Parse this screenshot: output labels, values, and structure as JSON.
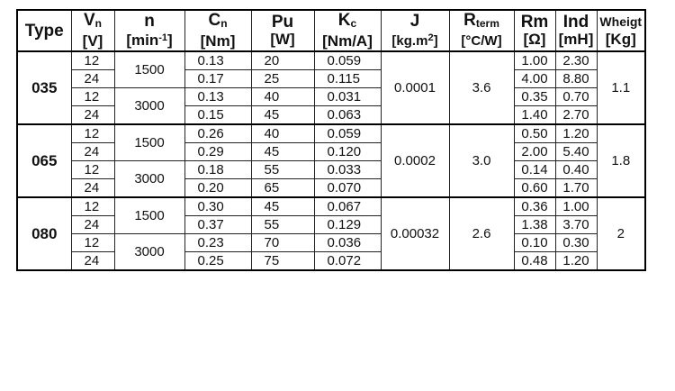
{
  "header": {
    "type": "Type",
    "vn_sym": "V",
    "vn_sub": "n",
    "vn_unit": "[V]",
    "n_sym": "n",
    "n_unit_pre": "[min",
    "n_unit_sup": "-1",
    "n_unit_post": "]",
    "cn_sym": "C",
    "cn_sub": "n",
    "cn_unit": "[Nm]",
    "pu_sym": "Pu",
    "pu_unit": "[W]",
    "kc_sym": "K",
    "kc_sub": "c",
    "kc_unit": "[Nm/A]",
    "j_sym": "J",
    "j_unit_pre": "[kg.m",
    "j_unit_sup": "2",
    "j_unit_post": "]",
    "rt_sym": "R",
    "rt_sub": "term",
    "rt_unit": "[°C/W]",
    "rm_sym": "Rm",
    "rm_unit": "[Ω]",
    "ind_sym": "Ind",
    "ind_unit": "[mH]",
    "w_sym": "Wheigt",
    "w_unit": "[Kg]"
  },
  "groups": [
    {
      "type": "035",
      "j": "0.0001",
      "rterm": "3.6",
      "weight": "1.1",
      "speeds": [
        {
          "n": "1500",
          "rows": [
            {
              "vn": "12",
              "cn": "0.13",
              "pu": "20",
              "kc": "0.059",
              "rm": "1.00",
              "ind": "2.30"
            },
            {
              "vn": "24",
              "cn": "0.17",
              "pu": "25",
              "kc": "0.115",
              "rm": "4.00",
              "ind": "8.80"
            }
          ]
        },
        {
          "n": "3000",
          "rows": [
            {
              "vn": "12",
              "cn": "0.13",
              "pu": "40",
              "kc": "0.031",
              "rm": "0.35",
              "ind": "0.70"
            },
            {
              "vn": "24",
              "cn": "0.15",
              "pu": "45",
              "kc": "0.063",
              "rm": "1.40",
              "ind": "2.70"
            }
          ]
        }
      ]
    },
    {
      "type": "065",
      "j": "0.0002",
      "rterm": "3.0",
      "weight": "1.8",
      "speeds": [
        {
          "n": "1500",
          "rows": [
            {
              "vn": "12",
              "cn": "0.26",
              "pu": "40",
              "kc": "0.059",
              "rm": "0.50",
              "ind": "1.20"
            },
            {
              "vn": "24",
              "cn": "0.29",
              "pu": "45",
              "kc": "0.120",
              "rm": "2.00",
              "ind": "5.40"
            }
          ]
        },
        {
          "n": "3000",
          "rows": [
            {
              "vn": "12",
              "cn": "0.18",
              "pu": "55",
              "kc": "0.033",
              "rm": "0.14",
              "ind": "0.40"
            },
            {
              "vn": "24",
              "cn": "0.20",
              "pu": "65",
              "kc": "0.070",
              "rm": "0.60",
              "ind": "1.70"
            }
          ]
        }
      ]
    },
    {
      "type": "080",
      "j": "0.00032",
      "rterm": "2.6",
      "weight": "2",
      "speeds": [
        {
          "n": "1500",
          "rows": [
            {
              "vn": "12",
              "cn": "0.30",
              "pu": "45",
              "kc": "0.067",
              "rm": "0.36",
              "ind": "1.00"
            },
            {
              "vn": "24",
              "cn": "0.37",
              "pu": "55",
              "kc": "0.129",
              "rm": "1.38",
              "ind": "3.70"
            }
          ]
        },
        {
          "n": "3000",
          "rows": [
            {
              "vn": "12",
              "cn": "0.23",
              "pu": "70",
              "kc": "0.036",
              "rm": "0.10",
              "ind": "0.30"
            },
            {
              "vn": "24",
              "cn": "0.25",
              "pu": "75",
              "kc": "0.072",
              "rm": "0.48",
              "ind": "1.20"
            }
          ]
        }
      ]
    }
  ]
}
